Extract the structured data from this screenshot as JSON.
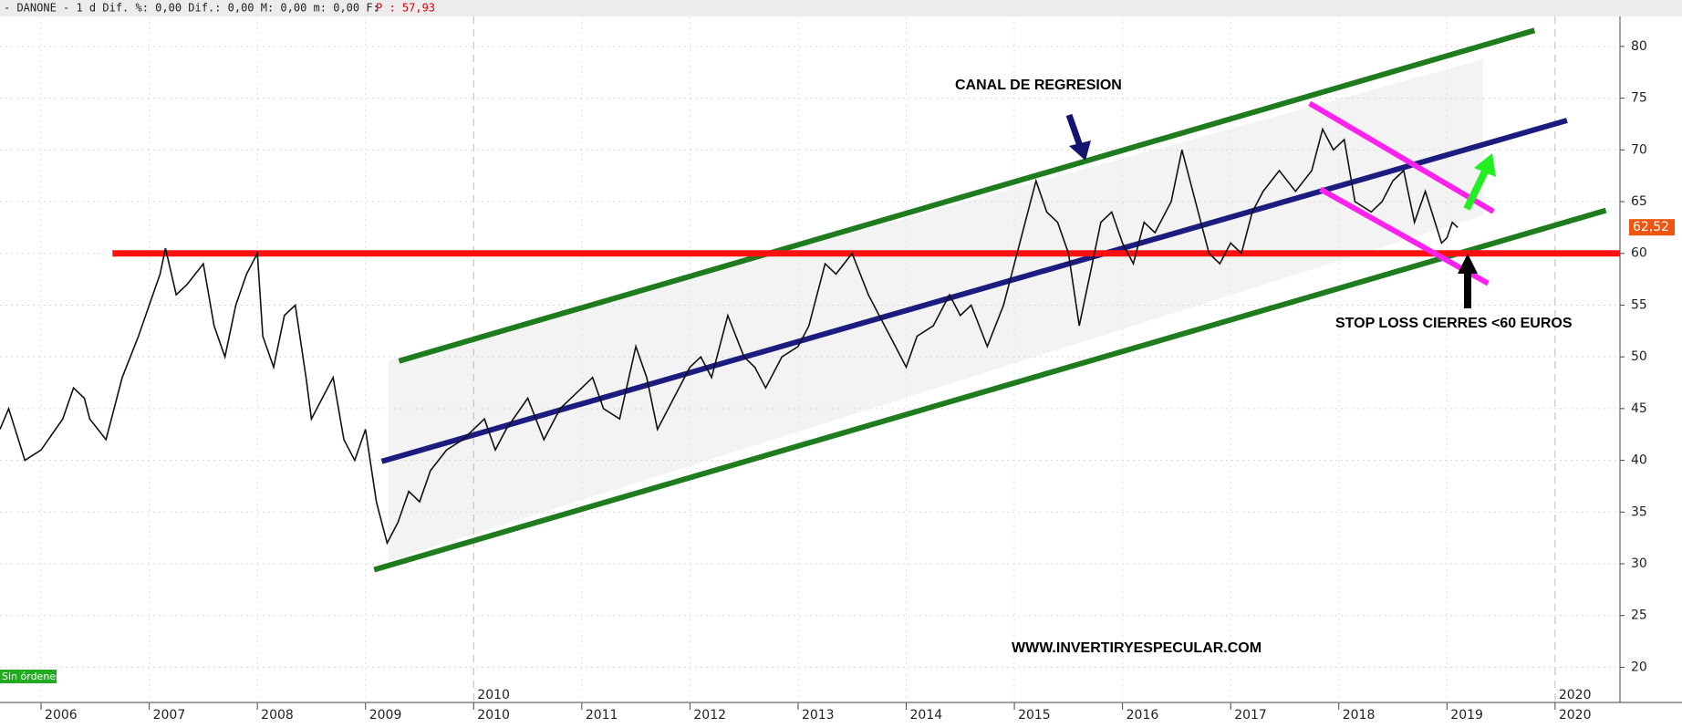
{
  "chart_data": {
    "type": "line",
    "header": "- DANONE -  1 d Dif. %: 0,00 Dif.: 0,00 M: 0,00 m: 0,00 F:",
    "header_price": "P : 57,93",
    "status": "Sin órdenes",
    "annotations": [
      "CANAL DE REGRESION",
      "STOP LOSS  CIERRES <60 EUROS",
      "WWW.INVERTIRYESPECULAR.COM"
    ],
    "last_price": {
      "value": 62.52,
      "label": "62,52"
    },
    "xlim": [
      2005.62,
      2020.6
    ],
    "xticks": [
      2006,
      2007,
      2008,
      2009,
      2010,
      2011,
      2012,
      2013,
      2014,
      2015,
      2016,
      2017,
      2018,
      2019,
      2020
    ],
    "ylim": [
      16.6,
      82.9
    ],
    "yticks": [
      20,
      25,
      30,
      35,
      40,
      45,
      50,
      55,
      60,
      65,
      70,
      75,
      80
    ],
    "grid": true,
    "series": [
      {
        "color": "#111111",
        "x": [
          2005.62,
          2005.7,
          2005.85,
          2006.0,
          2006.2,
          2006.3,
          2006.4,
          2006.45,
          2006.6,
          2006.75,
          2006.9,
          2007.0,
          2007.1,
          2007.15,
          2007.25,
          2007.35,
          2007.5,
          2007.6,
          2007.7,
          2007.8,
          2007.9,
          2008.0,
          2008.05,
          2008.15,
          2008.25,
          2008.35,
          2008.45,
          2008.5,
          2008.6,
          2008.7,
          2008.8,
          2008.9,
          2009.0,
          2009.1,
          2009.2,
          2009.3,
          2009.4,
          2009.5,
          2009.6,
          2009.75,
          2009.9,
          2010.1,
          2010.2,
          2010.3,
          2010.5,
          2010.65,
          2010.8,
          2011.0,
          2011.1,
          2011.2,
          2011.35,
          2011.5,
          2011.6,
          2011.7,
          2011.85,
          2012.0,
          2012.1,
          2012.2,
          2012.35,
          2012.5,
          2012.6,
          2012.7,
          2012.85,
          2013.0,
          2013.1,
          2013.25,
          2013.35,
          2013.5,
          2013.65,
          2013.8,
          2013.9,
          2014.0,
          2014.1,
          2014.25,
          2014.4,
          2014.5,
          2014.6,
          2014.75,
          2014.9,
          2015.0,
          2015.1,
          2015.2,
          2015.3,
          2015.4,
          2015.5,
          2015.6,
          2015.7,
          2015.8,
          2015.9,
          2016.0,
          2016.1,
          2016.2,
          2016.3,
          2016.45,
          2016.55,
          2016.7,
          2016.8,
          2016.9,
          2017.0,
          2017.1,
          2017.2,
          2017.3,
          2017.45,
          2017.6,
          2017.75,
          2017.85,
          2017.95,
          2018.05,
          2018.15,
          2018.3,
          2018.4,
          2018.5,
          2018.6,
          2018.7,
          2018.8,
          2018.95,
          2019.0,
          2019.05,
          2019.1
        ],
        "values": [
          43,
          45,
          40,
          41,
          44,
          47,
          46,
          44,
          42,
          48,
          52,
          55,
          58,
          60.5,
          56,
          57,
          59,
          53,
          50,
          55,
          58,
          60,
          52,
          49,
          54,
          55,
          48,
          44,
          46,
          48,
          42,
          40,
          43,
          36,
          32,
          34,
          37,
          36,
          39,
          41,
          42,
          44,
          41,
          43,
          46,
          42,
          45,
          47,
          48,
          45,
          44,
          51,
          48,
          43,
          46,
          49,
          50,
          48,
          54,
          50,
          49,
          47,
          50,
          51,
          53,
          59,
          58,
          60,
          56,
          53,
          51,
          49,
          52,
          53,
          56,
          54,
          55,
          51,
          55,
          59,
          63,
          67,
          64,
          63,
          60,
          53,
          58,
          63,
          64,
          61,
          59,
          63,
          62,
          65,
          70,
          64,
          60,
          59,
          61,
          60,
          64,
          66,
          68,
          66,
          68,
          72,
          70,
          71,
          65,
          64,
          65,
          67,
          68,
          63,
          66,
          61,
          61.5,
          63,
          62.5
        ]
      }
    ],
    "trendlines": [
      {
        "color": "#1e7b1e",
        "x": [
          2009.31,
          2019.81
        ],
        "values": [
          49.6,
          81.55
        ]
      },
      {
        "color": "#1e7b1e",
        "x": [
          2009.08,
          2020.47
        ],
        "values": [
          29.43,
          64.15
        ]
      },
      {
        "color": "#1b1b80",
        "x": [
          2009.15,
          2020.11
        ],
        "values": [
          39.9,
          72.85
        ]
      },
      {
        "color": "#ff1010",
        "x": [
          2006.66,
          2020.6
        ],
        "values": [
          60,
          60
        ]
      },
      {
        "color": "#ff22ee",
        "x": [
          2017.73,
          2019.43
        ],
        "values": [
          74.5,
          64.04
        ]
      },
      {
        "color": "#ff22ee",
        "x": [
          2017.83,
          2019.38
        ],
        "values": [
          66.2,
          57.1
        ]
      }
    ]
  }
}
